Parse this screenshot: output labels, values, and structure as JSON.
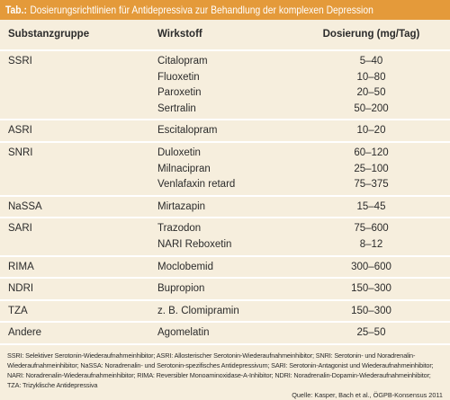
{
  "header": {
    "prefix": "Tab.:",
    "title": "Dosierungsrichtlinien für Antidepressiva zur Behandlung der komplexen Depression"
  },
  "table": {
    "columns": [
      "Substanzgruppe",
      "Wirkstoff",
      "Dosierung (mg/Tag)"
    ],
    "groups": [
      {
        "group": "SSRI",
        "rows": [
          [
            "Citalopram",
            "5–40"
          ],
          [
            "Fluoxetin",
            "10–80"
          ],
          [
            "Paroxetin",
            "20–50"
          ],
          [
            "Sertralin",
            "50–200"
          ]
        ]
      },
      {
        "group": "ASRI",
        "rows": [
          [
            "Escitalopram",
            "10–20"
          ]
        ]
      },
      {
        "group": "SNRI",
        "rows": [
          [
            "Duloxetin",
            "60–120"
          ],
          [
            "Milnacipran",
            "25–100"
          ],
          [
            "Venlafaxin retard",
            "75–375"
          ]
        ]
      },
      {
        "group": "NaSSA",
        "rows": [
          [
            "Mirtazapin",
            "15–45"
          ]
        ]
      },
      {
        "group": "SARI",
        "rows": [
          [
            "Trazodon",
            "75–600"
          ],
          [
            "NARI Reboxetin",
            "8–12"
          ]
        ]
      },
      {
        "group": "RIMA",
        "rows": [
          [
            "Moclobemid",
            "300–600"
          ]
        ]
      },
      {
        "group": "NDRI",
        "rows": [
          [
            "Bupropion",
            "150–300"
          ]
        ]
      },
      {
        "group": "TZA",
        "rows": [
          [
            "z. B. Clomipramin",
            "150–300"
          ]
        ]
      },
      {
        "group": "Andere",
        "rows": [
          [
            "Agomelatin",
            "25–50"
          ]
        ]
      }
    ]
  },
  "footnote": "SSRI: Selektiver Serotonin-Wiederaufnahmeinhibitor; ASRI: Allosterischer Serotonin-Wiederaufnahmeinhibitor; SNRI: Serotonin- und Noradrenalin-Wiederaufnahmeinhibitor; NaSSA: Noradrenalin- und Serotonin-spezifisches Antidepressivum; SARI: Serotonin-Antagonist und Wiederaufnahmeinhibitor; NARI: Noradrenalin-Wiederaufnahmeinhibitor; RIMA: Reversibler Monoaminoxidase-A-Inhibitor; NDRI: Noradrenalin-Dopamin-Wiederaufnahmeinhibitor; TZA: Trizyklische Antidepressiva",
  "source": "Quelle: Kasper, Bach et al., ÖGPB-Konsensus 2011"
}
